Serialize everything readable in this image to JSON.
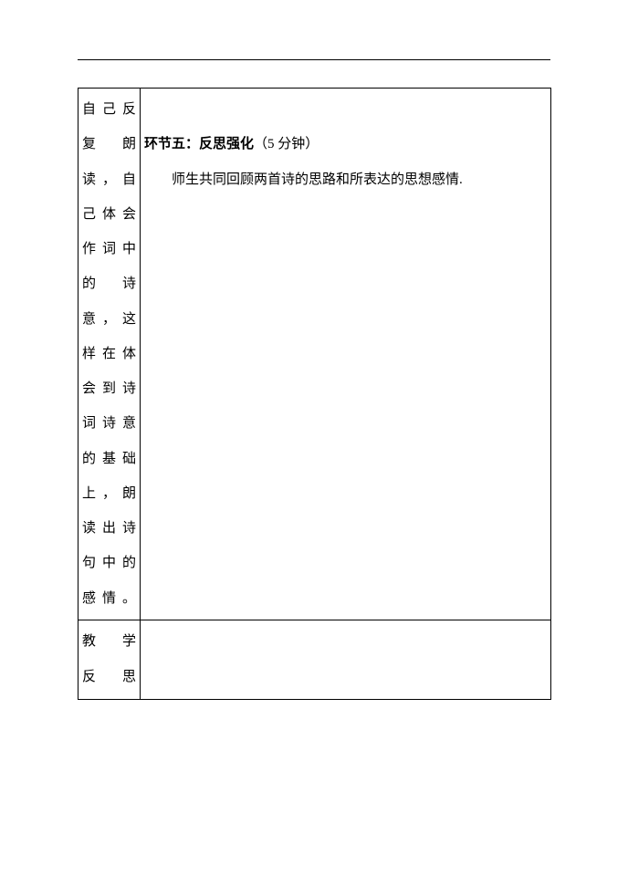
{
  "leftColumn": {
    "text": "自己反复朗读，自己体会作词中的诗意，这样在体会到诗词诗意的基础上，朗读出诗句中的感情。"
  },
  "rightColumn": {
    "sectionLabel": "环节五：反思强化",
    "sectionTime": "（5 分钟）",
    "body": "师生共同回顾两首诗的思路和所表达的思想感情."
  },
  "row2": {
    "leftLine1": "教学",
    "leftLine2": "反思",
    "right": ""
  }
}
